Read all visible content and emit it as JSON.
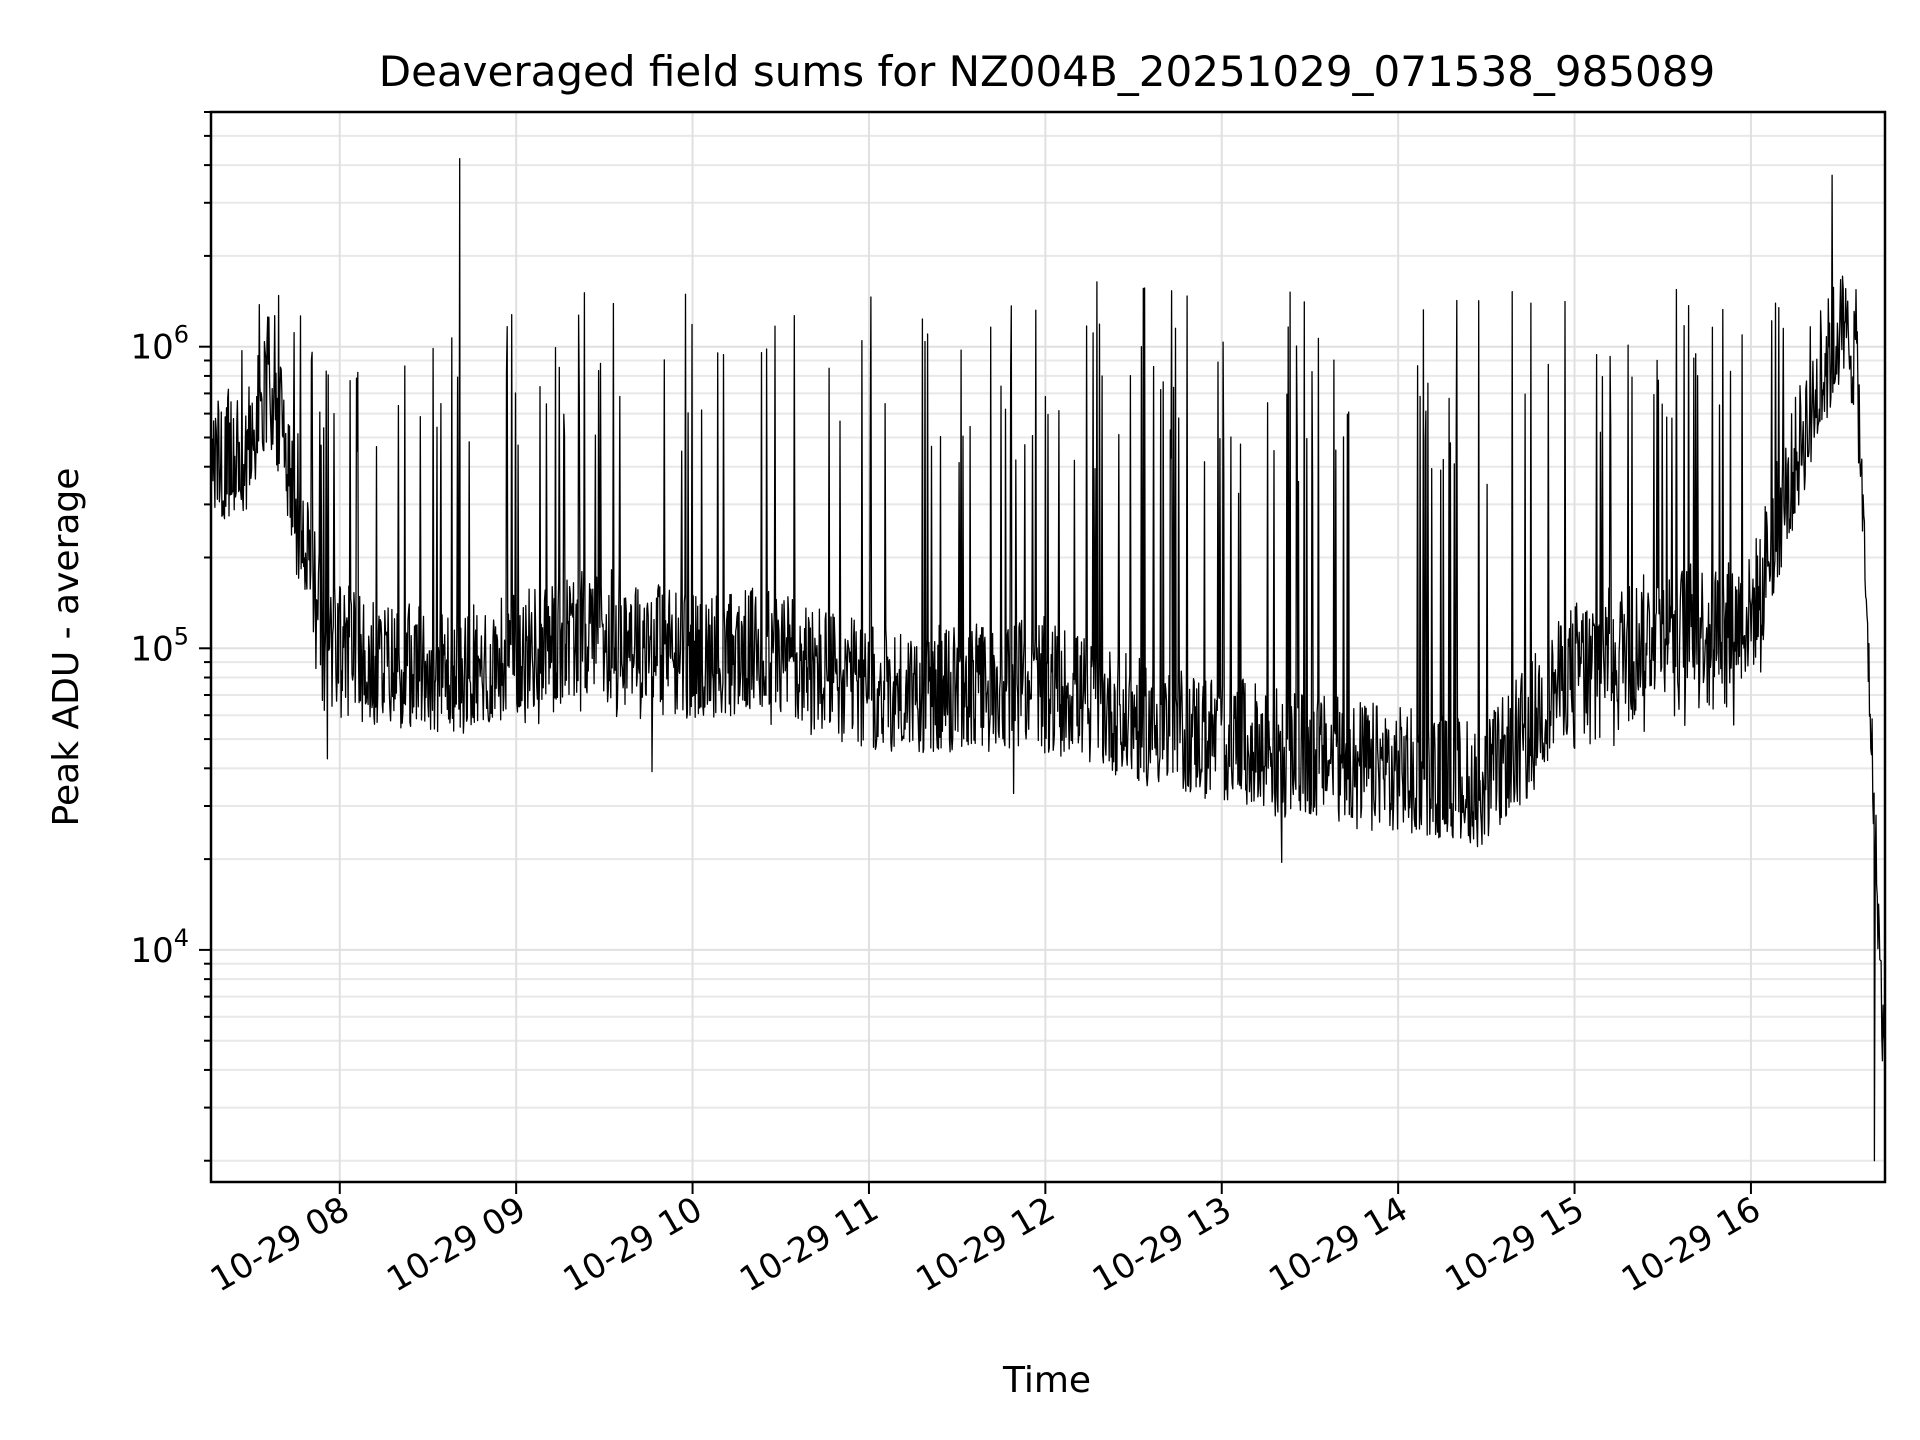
{
  "chart_data": {
    "type": "line",
    "title": "Deaveraged field sums for NZ004B_20251029_071538_985089",
    "xlabel": "Time",
    "ylabel": "Peak ADU - average",
    "yscale": "log",
    "grid": true,
    "xlim_hours": [
      7.27,
      16.76
    ],
    "ylim": [
      1700,
      6000000
    ],
    "x_ticks": [
      {
        "label": "10-29 08",
        "hour": 8
      },
      {
        "label": "10-29 09",
        "hour": 9
      },
      {
        "label": "10-29 10",
        "hour": 10
      },
      {
        "label": "10-29 11",
        "hour": 11
      },
      {
        "label": "10-29 12",
        "hour": 12
      },
      {
        "label": "10-29 13",
        "hour": 13
      },
      {
        "label": "10-29 14",
        "hour": 14
      },
      {
        "label": "10-29 15",
        "hour": 15
      },
      {
        "label": "10-29 16",
        "hour": 16
      }
    ],
    "y_ticks": [
      {
        "base": "10",
        "exp": "4",
        "value": 10000
      },
      {
        "base": "10",
        "exp": "5",
        "value": 100000
      },
      {
        "base": "10",
        "exp": "6",
        "value": 1000000
      }
    ],
    "series": [
      {
        "name": "deaveraged field sum",
        "color": "#000000",
        "envelope": [
          {
            "hour": 7.27,
            "low": 330000,
            "base": 420000,
            "high": 560000
          },
          {
            "hour": 7.45,
            "low": 320000,
            "base": 400000,
            "high": 1300000
          },
          {
            "hour": 7.6,
            "low": 450000,
            "base": 750000,
            "high": 1500000
          },
          {
            "hour": 7.75,
            "low": 180000,
            "base": 350000,
            "high": 1450000
          },
          {
            "hour": 7.9,
            "low": 55000,
            "base": 110000,
            "high": 900000
          },
          {
            "hour": 8.2,
            "low": 55000,
            "base": 85000,
            "high": 900000
          },
          {
            "hour": 8.7,
            "low": 55000,
            "base": 80000,
            "high": 1200000
          },
          {
            "hour": 9.2,
            "low": 55000,
            "base": 100000,
            "high": 1600000
          },
          {
            "hour": 9.5,
            "low": 60000,
            "base": 120000,
            "high": 1500000
          },
          {
            "hour": 10.0,
            "low": 55000,
            "base": 90000,
            "high": 1600000
          },
          {
            "hour": 10.5,
            "low": 55000,
            "base": 95000,
            "high": 1700000
          },
          {
            "hour": 11.0,
            "low": 45000,
            "base": 70000,
            "high": 1650000
          },
          {
            "hour": 11.5,
            "low": 45000,
            "base": 70000,
            "high": 1650000
          },
          {
            "hour": 12.0,
            "low": 45000,
            "base": 75000,
            "high": 1700000
          },
          {
            "hour": 12.5,
            "low": 38000,
            "base": 55000,
            "high": 1600000
          },
          {
            "hour": 13.0,
            "low": 30000,
            "base": 48000,
            "high": 1600000
          },
          {
            "hour": 13.5,
            "low": 26000,
            "base": 42000,
            "high": 1500000
          },
          {
            "hour": 14.0,
            "low": 24000,
            "base": 38000,
            "high": 1550000
          },
          {
            "hour": 14.5,
            "low": 23000,
            "base": 34000,
            "high": 1600000
          },
          {
            "hour": 14.8,
            "low": 35000,
            "base": 60000,
            "high": 1600000
          },
          {
            "hour": 15.0,
            "low": 45000,
            "base": 85000,
            "high": 1650000
          },
          {
            "hour": 15.5,
            "low": 50000,
            "base": 110000,
            "high": 1700000
          },
          {
            "hour": 16.0,
            "low": 50000,
            "base": 120000,
            "high": 1700000
          },
          {
            "hour": 16.1,
            "low": 120000,
            "base": 200000,
            "high": 1700000
          },
          {
            "hour": 16.3,
            "low": 350000,
            "base": 500000,
            "high": 1500000
          },
          {
            "hour": 16.5,
            "low": 800000,
            "base": 1100000,
            "high": 1400000
          },
          {
            "hour": 16.6,
            "low": 800000,
            "base": 900000,
            "high": 950000
          },
          {
            "hour": 16.76,
            "low": 1900,
            "base": 3500,
            "high": 7000
          }
        ],
        "notable_spikes": [
          {
            "hour": 8.68,
            "value": 4200000
          },
          {
            "hour": 16.46,
            "value": 3700000
          }
        ],
        "notable_dips": [
          {
            "hour": 7.93,
            "value": 43000
          },
          {
            "hour": 9.77,
            "value": 39000
          },
          {
            "hour": 11.82,
            "value": 33000
          },
          {
            "hour": 13.34,
            "value": 19500
          },
          {
            "hour": 13.97,
            "value": 25000
          },
          {
            "hour": 14.45,
            "value": 22000
          },
          {
            "hour": 16.7,
            "value": 2000
          }
        ]
      }
    ]
  }
}
